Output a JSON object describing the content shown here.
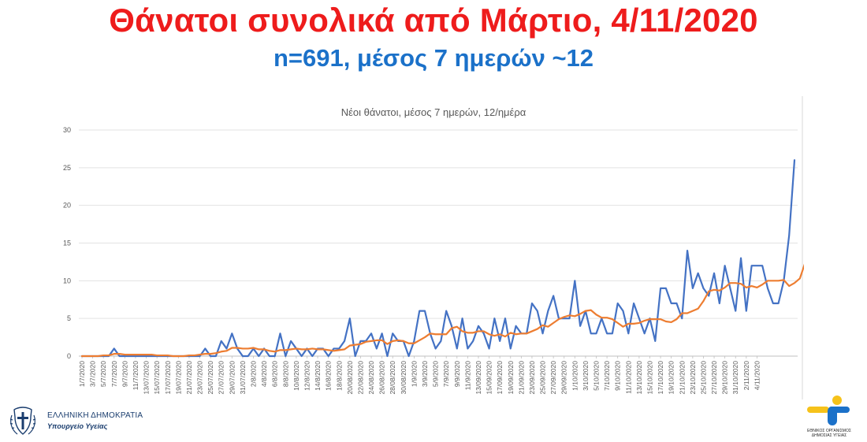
{
  "page": {
    "title": "Θάνατοι συνολικά από Μάρτιο, 4/11/2020",
    "subtitle": "n=691, μέσος 7 ημερών ~12"
  },
  "footer": {
    "ministry_line1": "ΕΛΛΗΝΙΚΗ ΔΗΜΟΚΡΑΤΙΑ",
    "ministry_line2": "Υπουργείο Υγείας",
    "eody_line1": "ΕΘΝΙΚΟΣ ΟΡΓΑΝΙΣΜΟΣ",
    "eody_line2": "ΔΗΜΟΣΙΑΣ ΥΓΕΙΑΣ",
    "colors": {
      "ministry": "#1a3d6e",
      "eody_blue": "#1b71c9",
      "eody_yellow": "#f6c21a"
    }
  },
  "chart_data": {
    "type": "line",
    "title": "Νέοι θάνατοι, μέσος 7 ημερών, 12/ημέρα",
    "xlabel": "",
    "ylabel": "",
    "ylim": [
      0,
      30
    ],
    "yticks": [
      0,
      5,
      10,
      15,
      20,
      25,
      30
    ],
    "grid": true,
    "legend": "none",
    "x_tick_labels": [
      "1/7/2020",
      "3/7/2020",
      "5/7/2020",
      "7/7/2020",
      "9/7/2020",
      "11/7/2020",
      "13/07/2020",
      "15/07/2020",
      "17/07/2020",
      "19/07/2020",
      "21/07/2020",
      "23/07/2020",
      "25/07/2020",
      "27/07/2020",
      "29/07/2020",
      "31/07/2020",
      "2/8/2020",
      "4/8/2020",
      "6/8/2020",
      "8/8/2020",
      "10/8/2020",
      "12/8/2020",
      "14/8/2020",
      "16/8/2020",
      "18/8/2020",
      "20/08/2020",
      "22/08/2020",
      "24/08/2020",
      "26/08/2020",
      "28/08/2020",
      "30/08/2020",
      "1/9/2020",
      "3/9/2020",
      "5/9/2020",
      "7/9/2020",
      "9/9/2020",
      "11/9/2020",
      "13/09/2020",
      "15/09/2020",
      "17/09/2020",
      "19/09/2020",
      "21/09/2020",
      "23/09/2020",
      "25/09/2020",
      "27/09/2020",
      "29/09/2020",
      "1/10/2020",
      "3/10/2020",
      "5/10/2020",
      "7/10/2020",
      "9/10/2020",
      "11/10/2020",
      "13/10/2020",
      "15/10/2020",
      "17/10/2020",
      "19/10/2020",
      "21/10/2020",
      "23/10/2020",
      "25/10/2020",
      "27/10/2020",
      "29/10/2020",
      "31/10/2020",
      "2/11/2020",
      "4/11/2020"
    ],
    "series": [
      {
        "name": "",
        "color": "#4472c4",
        "values": [
          0,
          0,
          0,
          0,
          0,
          0,
          1,
          0,
          0,
          0,
          0,
          0,
          0,
          0,
          0,
          0,
          0,
          0,
          0,
          0,
          0,
          0,
          0,
          1,
          0,
          0,
          2,
          1,
          3,
          1,
          0,
          0,
          1,
          0,
          1,
          0,
          0,
          3,
          0,
          2,
          1,
          0,
          1,
          0,
          1,
          1,
          0,
          1,
          1,
          2,
          5,
          0,
          2,
          2,
          3,
          1,
          3,
          0,
          3,
          2,
          2,
          0,
          2,
          6,
          6,
          3,
          1,
          2,
          6,
          4,
          1,
          5,
          1,
          2,
          4,
          3,
          1,
          5,
          2,
          5,
          1,
          4,
          3,
          3,
          7,
          6,
          3,
          6,
          8,
          5,
          5,
          5,
          10,
          4,
          6,
          3,
          3,
          5,
          3,
          3,
          7,
          6,
          3,
          7,
          5,
          3,
          5,
          2,
          9,
          9,
          7,
          7,
          5,
          14,
          9,
          11,
          9,
          8,
          11,
          7,
          12,
          9,
          6,
          13,
          6,
          12,
          12,
          12,
          9,
          7,
          7,
          10,
          16,
          26
        ]
      },
      {
        "name": "",
        "color": "#ed7d31",
        "values": [
          0,
          0,
          0,
          0,
          0.1,
          0.1,
          0.3,
          0.3,
          0.2,
          0.2,
          0.2,
          0.2,
          0.2,
          0.2,
          0.1,
          0.1,
          0.1,
          0,
          0,
          0,
          0.1,
          0.1,
          0.2,
          0.3,
          0.3,
          0.4,
          0.6,
          0.7,
          1.1,
          1.1,
          1.0,
          1.0,
          1.1,
          0.9,
          0.9,
          0.7,
          0.6,
          0.8,
          0.8,
          0.9,
          1.0,
          0.9,
          0.9,
          1.0,
          0.9,
          0.9,
          0.8,
          0.7,
          0.8,
          0.9,
          1.4,
          1.5,
          1.6,
          1.9,
          2.0,
          2.1,
          2.1,
          1.6,
          2.0,
          2.1,
          2.0,
          1.7,
          1.7,
          2.1,
          2.5,
          3.0,
          2.9,
          2.9,
          2.9,
          3.7,
          3.9,
          3.3,
          3.1,
          3.1,
          3.3,
          3.3,
          2.9,
          2.7,
          2.9,
          2.6,
          3.1,
          2.9,
          3.0,
          3.0,
          3.3,
          3.6,
          4.1,
          3.9,
          4.4,
          4.9,
          5.2,
          5.4,
          5.3,
          5.6,
          6.0,
          6.1,
          5.5,
          5.1,
          5.1,
          4.9,
          4.4,
          3.9,
          4.3,
          4.3,
          4.4,
          4.7,
          4.9,
          4.9,
          4.9,
          4.6,
          4.5,
          4.9,
          5.7,
          5.7,
          6.0,
          6.3,
          7.3,
          8.6,
          8.8,
          8.7,
          9.1,
          9.7,
          9.7,
          9.6,
          9.1,
          9.3,
          9.1,
          9.5,
          10.0,
          10.0,
          10.0,
          10.1,
          9.3,
          9.7,
          10.3,
          12.4
        ]
      }
    ]
  }
}
